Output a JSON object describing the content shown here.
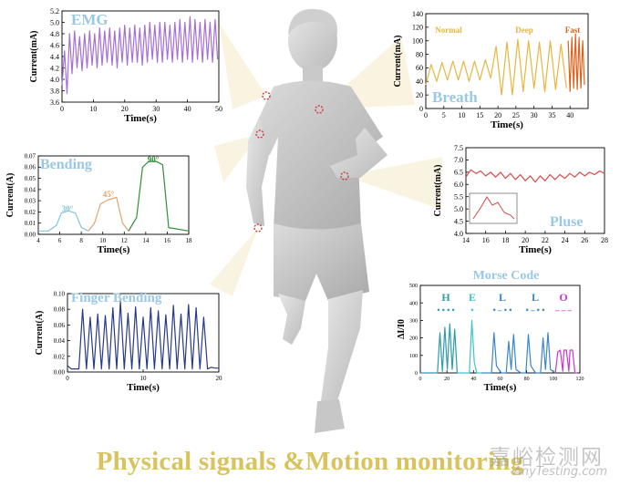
{
  "footer": {
    "title": "Physical signals &Motion monitoring",
    "watermark_cn": "嘉峪检测网",
    "watermark_url": "AnyTesting.com"
  },
  "colors": {
    "emg": "#a56fd6",
    "breath_normal": "#e7b640",
    "breath_deep": "#e7b640",
    "breath_fast": "#d9641e",
    "pulse": "#d64a4a",
    "bend30": "#86c3e2",
    "bend45": "#e3a468",
    "bend90": "#2f8f3a",
    "finger": "#273a8a",
    "morse_h": "#2e9cab",
    "morse_e": "#3ec3cf",
    "morse_l": "#3a86c9",
    "morse_o": "#c43ad1",
    "title_blue": "#9ac8e4",
    "footer_gold": "#d8c35e"
  },
  "chart_data": [
    {
      "id": "emg",
      "type": "line",
      "title": "EMG",
      "xlabel": "Time(s)",
      "ylabel": "Current(mA)",
      "xlim": [
        0,
        50
      ],
      "ylim": [
        3.6,
        5.2
      ],
      "xticks": [
        "0",
        "10",
        "20",
        "30",
        "40",
        "50"
      ],
      "yticks": [
        "3.6",
        "3.8",
        "4.0",
        "4.2",
        "4.4",
        "4.6",
        "4.8",
        "5.0",
        "5.2"
      ],
      "series": [
        {
          "color": "#a56fd6",
          "x": [
            0,
            0.8,
            1.6,
            2.4,
            3.2,
            4,
            4.8,
            5.6,
            6.4,
            7.2,
            8,
            8.8,
            9.6,
            10.4,
            11.2,
            12,
            12.8,
            13.6,
            14.4,
            15.2,
            16,
            16.8,
            17.6,
            18.4,
            19.2,
            20,
            20.8,
            21.6,
            22.4,
            23.2,
            24,
            24.8,
            25.6,
            26.4,
            27.2,
            28,
            28.8,
            29.6,
            30.4,
            31.2,
            32,
            32.8,
            33.6,
            34.4,
            35.2,
            36,
            36.8,
            37.6,
            38.4,
            39.2,
            40,
            40.8,
            41.6,
            42.4,
            43.2,
            44,
            44.8,
            45.6,
            46.4,
            47.2,
            48,
            48.8,
            49.6
          ],
          "y": [
            3.9,
            4.5,
            3.75,
            4.8,
            4.1,
            4.85,
            4.2,
            4.75,
            4.15,
            4.8,
            4.2,
            4.85,
            4.25,
            4.8,
            4.2,
            4.9,
            4.25,
            4.85,
            4.3,
            4.9,
            4.25,
            4.85,
            4.2,
            4.9,
            4.3,
            4.95,
            4.25,
            4.9,
            4.3,
            4.95,
            4.3,
            4.9,
            4.25,
            4.95,
            4.3,
            5.0,
            4.35,
            4.95,
            4.3,
            5.0,
            4.3,
            5.0,
            4.35,
            4.95,
            4.3,
            5.0,
            4.35,
            5.05,
            4.3,
            5.0,
            4.35,
            5.1,
            4.3,
            5.05,
            4.35,
            5.0,
            4.3,
            5.05,
            4.35,
            5.0,
            4.3,
            5.05,
            4.35
          ]
        }
      ]
    },
    {
      "id": "breath",
      "type": "line",
      "title": "Breath",
      "xlabel": "Time(s)",
      "ylabel": "Current(mA)",
      "xlim": [
        0,
        45
      ],
      "ylim": [
        0,
        140
      ],
      "xticks": [
        "0",
        "5",
        "10",
        "15",
        "20",
        "25",
        "30",
        "35",
        "40"
      ],
      "yticks": [
        "0",
        "20",
        "40",
        "60",
        "80",
        "100",
        "120",
        "140"
      ],
      "annotations": [
        "Normal",
        "Deep",
        "Fast"
      ],
      "series": [
        {
          "color": "#e7b640",
          "x": [
            0,
            1.5,
            3,
            4.5,
            6,
            7.5,
            9,
            10.5,
            12,
            13.5,
            15,
            16.5,
            18,
            19.5,
            21,
            22.5,
            24,
            25.5,
            27,
            28.5,
            30,
            31.5,
            33,
            34.5,
            36,
            37.5,
            39
          ],
          "y": [
            35,
            65,
            40,
            68,
            42,
            70,
            42,
            70,
            40,
            70,
            42,
            72,
            45,
            92,
            20,
            98,
            20,
            102,
            25,
            100,
            30,
            98,
            25,
            100,
            28,
            95,
            30
          ]
        },
        {
          "color": "#d9641e",
          "x": [
            39.5,
            40,
            40.5,
            41,
            41.5,
            42,
            42.5,
            43,
            43.5,
            44
          ],
          "y": [
            100,
            25,
            105,
            30,
            110,
            28,
            105,
            30,
            100,
            35
          ]
        }
      ]
    },
    {
      "id": "pulse",
      "type": "line",
      "title": "Pluse",
      "xlabel": "Time(s)",
      "ylabel": "Current(mA)",
      "xlim": [
        14,
        28
      ],
      "ylim": [
        4.0,
        7.5
      ],
      "xticks": [
        "14",
        "16",
        "18",
        "20",
        "22",
        "24",
        "26",
        "28"
      ],
      "yticks": [
        "4.0",
        "4.5",
        "5.0",
        "5.5",
        "6.0",
        "6.5",
        "7.0",
        "7.5"
      ],
      "series": [
        {
          "color": "#d64a4a",
          "x": [
            14,
            14.5,
            15,
            15.5,
            16,
            16.5,
            17,
            17.5,
            18,
            18.5,
            19,
            19.5,
            20,
            20.5,
            21,
            21.5,
            22,
            22.5,
            23,
            23.5,
            24,
            24.5,
            25,
            25.5,
            26,
            26.5,
            27,
            27.5,
            28
          ],
          "y": [
            6.3,
            6.6,
            6.45,
            6.55,
            6.35,
            6.5,
            6.3,
            6.5,
            6.25,
            6.45,
            6.2,
            6.4,
            6.15,
            6.35,
            6.1,
            6.35,
            6.15,
            6.4,
            6.2,
            6.4,
            6.25,
            6.45,
            6.3,
            6.5,
            6.35,
            6.5,
            6.4,
            6.55,
            6.45
          ]
        }
      ]
    },
    {
      "id": "bending",
      "type": "line",
      "title": "Bending",
      "xlabel": "Time(s)",
      "ylabel": "Current(A)",
      "xlim": [
        4,
        19
      ],
      "ylim": [
        0,
        0.07
      ],
      "xticks": [
        "4",
        "6",
        "8",
        "10",
        "12",
        "14",
        "16",
        "18"
      ],
      "yticks": [
        "0.00",
        "0.01",
        "0.02",
        "0.03",
        "0.04",
        "0.05",
        "0.06",
        "0.07"
      ],
      "annotations": [
        "30°",
        "45°",
        "90°"
      ],
      "series": [
        {
          "color": "#86c3e2",
          "x": [
            4,
            5,
            5.8,
            6.3,
            7,
            7.7,
            8.3,
            9
          ],
          "y": [
            0.003,
            0.003,
            0.008,
            0.019,
            0.021,
            0.019,
            0.006,
            0.003
          ]
        },
        {
          "color": "#e3a468",
          "x": [
            9,
            9.6,
            10.2,
            11,
            11.8,
            12.4,
            13
          ],
          "y": [
            0.003,
            0.01,
            0.027,
            0.031,
            0.033,
            0.01,
            0.003
          ]
        },
        {
          "color": "#2f8f3a",
          "x": [
            13,
            13.8,
            14.4,
            15,
            15.8,
            16.4,
            17,
            19
          ],
          "y": [
            0.003,
            0.015,
            0.06,
            0.065,
            0.065,
            0.062,
            0.006,
            0.003
          ]
        }
      ]
    },
    {
      "id": "finger",
      "type": "line",
      "title": "Finger Bending",
      "xlabel": "Time(s)",
      "ylabel": "Current(A)",
      "xlim": [
        0,
        20
      ],
      "ylim": [
        0,
        0.1
      ],
      "xticks": [
        "0",
        "10",
        "20"
      ],
      "yticks": [
        "0.00",
        "0.02",
        "0.04",
        "0.06",
        "0.08",
        "0.10"
      ],
      "series": [
        {
          "color": "#273a8a",
          "x": [
            0,
            0.5,
            1.5,
            2,
            2.5,
            3,
            3.5,
            4,
            4.5,
            5,
            5.5,
            6,
            6.5,
            7,
            7.5,
            8,
            8.5,
            9,
            9.5,
            10,
            10.5,
            11,
            11.5,
            12,
            12.5,
            13,
            13.5,
            14,
            14.5,
            15,
            15.5,
            16,
            16.5,
            17,
            17.5,
            18,
            18.5,
            19,
            19.5,
            20
          ],
          "y": [
            0.008,
            0.004,
            0.004,
            0.08,
            0.004,
            0.07,
            0.004,
            0.074,
            0.004,
            0.072,
            0.004,
            0.082,
            0.004,
            0.09,
            0.004,
            0.075,
            0.004,
            0.083,
            0.004,
            0.07,
            0.004,
            0.082,
            0.004,
            0.078,
            0.004,
            0.073,
            0.004,
            0.085,
            0.004,
            0.074,
            0.004,
            0.086,
            0.004,
            0.082,
            0.004,
            0.07,
            0.004,
            0.006,
            0.005,
            0.005
          ]
        }
      ]
    },
    {
      "id": "morse",
      "type": "line",
      "title": "Morse Code",
      "xlabel": "Time(s)",
      "ylabel": "ΔI/I0",
      "xlim": [
        0,
        130
      ],
      "ylim": [
        0,
        500
      ],
      "xticks": [
        "0",
        "20",
        "40",
        "60",
        "80",
        "100",
        "120"
      ],
      "yticks": [
        "0",
        "100",
        "200",
        "300",
        "400",
        "500"
      ],
      "letters": [
        {
          "char": "H",
          "code": "• • • •",
          "color": "#2e9cab"
        },
        {
          "char": "E",
          "code": "•",
          "color": "#3ec3cf"
        },
        {
          "char": "L",
          "code": "• – • •",
          "color": "#3a86c9"
        },
        {
          "char": "L",
          "code": "• – • •",
          "color": "#3a86c9"
        },
        {
          "char": "O",
          "code": "– – –",
          "color": "#c43ad1"
        }
      ],
      "series": [
        {
          "color": "#2e9cab",
          "x": [
            0,
            14,
            16,
            18,
            20,
            22,
            24,
            26,
            28,
            30
          ],
          "y": [
            0,
            0,
            230,
            10,
            260,
            20,
            280,
            20,
            250,
            0
          ]
        },
        {
          "color": "#3ec3cf",
          "x": [
            30,
            40,
            42,
            44,
            46,
            50
          ],
          "y": [
            0,
            0,
            300,
            60,
            0,
            0
          ]
        },
        {
          "color": "#3a86c9",
          "x": [
            50,
            58,
            60,
            62,
            66,
            70,
            72,
            74,
            76,
            78,
            82,
            86,
            88,
            90,
            94,
            98,
            100,
            102,
            104,
            106,
            110
          ],
          "y": [
            0,
            0,
            230,
            40,
            0,
            0,
            180,
            20,
            220,
            20,
            0,
            0,
            220,
            40,
            0,
            0,
            200,
            20,
            230,
            20,
            0
          ]
        },
        {
          "color": "#c43ad1",
          "x": [
            110,
            112,
            114,
            116,
            117,
            119,
            121,
            122,
            124,
            126,
            128
          ],
          "y": [
            0,
            120,
            130,
            10,
            130,
            130,
            10,
            130,
            130,
            0,
            0
          ]
        }
      ]
    }
  ]
}
